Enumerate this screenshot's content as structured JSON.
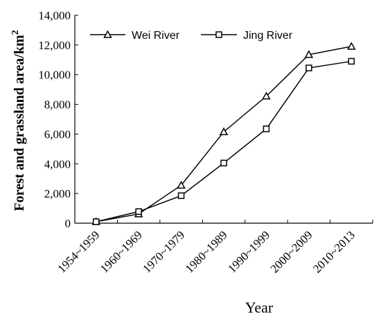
{
  "chart_data": {
    "type": "line",
    "title": "",
    "xlabel": "Year",
    "ylabel": "Forest and grassland area/km",
    "ylabel_superscript": "2",
    "categories": [
      "1954~1959",
      "1960~1969",
      "1970~1979",
      "1980~1989",
      "1990~1999",
      "2000~2009",
      "2010~2013"
    ],
    "ylim": [
      0,
      14000
    ],
    "yticks": [
      "0",
      "2,000",
      "4,000",
      "6,000",
      "8,000",
      "10,000",
      "12,000",
      "14,000"
    ],
    "grid": false,
    "legend_position": "top-left",
    "series": [
      {
        "name": "Wei River",
        "marker": "triangle",
        "color": "#000000",
        "values": [
          100,
          620,
          2550,
          6150,
          8550,
          11350,
          11900
        ]
      },
      {
        "name": "Jing River",
        "marker": "square",
        "color": "#000000",
        "values": [
          100,
          780,
          1850,
          4050,
          6350,
          10450,
          10900
        ]
      }
    ]
  }
}
